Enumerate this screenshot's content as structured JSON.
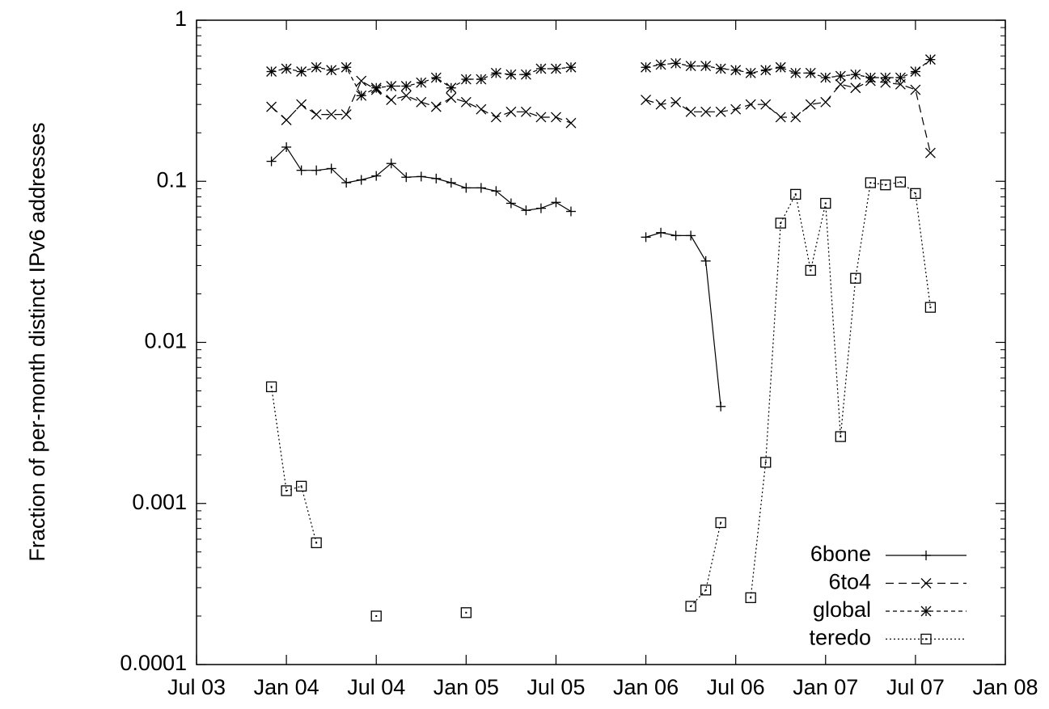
{
  "chart_data": {
    "type": "line",
    "ylabel": "Fraction of per-month distinct IPv6 addresses",
    "log_y": true,
    "x": [
      "2003-12",
      "2004-01",
      "2004-02",
      "2004-03",
      "2004-04",
      "2004-05",
      "2004-06",
      "2004-07",
      "2004-08",
      "2004-09",
      "2004-10",
      "2004-11",
      "2004-12",
      "2005-01",
      "2005-02",
      "2005-03",
      "2005-04",
      "2005-05",
      "2005-06",
      "2005-07",
      "2005-08",
      "2005-09",
      "2005-10",
      "2005-11",
      "2005-12",
      "2006-01",
      "2006-02",
      "2006-03",
      "2006-04",
      "2006-05",
      "2006-06",
      "2006-07",
      "2006-08",
      "2006-09",
      "2006-10",
      "2006-11",
      "2006-12",
      "2007-01",
      "2007-02",
      "2007-03",
      "2007-04",
      "2007-05",
      "2007-06",
      "2007-07",
      "2007-08"
    ],
    "xlim": [
      "2003-07",
      "2008-01"
    ],
    "xticks": [
      {
        "value": "2003-07",
        "label": "Jul 03"
      },
      {
        "value": "2004-01",
        "label": "Jan 04"
      },
      {
        "value": "2004-07",
        "label": "Jul 04"
      },
      {
        "value": "2005-01",
        "label": "Jan 05"
      },
      {
        "value": "2005-07",
        "label": "Jul 05"
      },
      {
        "value": "2006-01",
        "label": "Jan 06"
      },
      {
        "value": "2006-07",
        "label": "Jul 06"
      },
      {
        "value": "2007-01",
        "label": "Jan 07"
      },
      {
        "value": "2007-07",
        "label": "Jul 07"
      },
      {
        "value": "2008-01",
        "label": "Jan 08"
      }
    ],
    "ylim": [
      0.0001,
      1
    ],
    "yticks": [
      0.0001,
      0.001,
      0.01,
      0.1,
      1
    ],
    "legend": "bottom-right",
    "series": [
      {
        "name": "6bone",
        "color": "#000000",
        "marker": "plus",
        "dash": "none",
        "values": [
          0.133,
          0.163,
          0.117,
          0.117,
          0.12,
          0.098,
          0.102,
          0.108,
          0.129,
          0.106,
          0.107,
          0.104,
          0.098,
          0.091,
          0.091,
          0.087,
          0.073,
          0.066,
          0.068,
          0.074,
          0.065,
          null,
          null,
          null,
          null,
          0.045,
          0.048,
          0.046,
          0.046,
          0.032,
          0.004,
          null,
          null,
          null,
          null,
          null,
          null,
          null,
          null,
          null,
          null,
          null,
          null,
          null,
          null
        ]
      },
      {
        "name": "6to4",
        "color": "#000000",
        "marker": "cross",
        "dash": "10,6",
        "values": [
          0.29,
          0.24,
          0.3,
          0.26,
          0.26,
          0.26,
          0.42,
          0.37,
          0.32,
          0.34,
          0.31,
          0.29,
          0.33,
          0.31,
          0.28,
          0.25,
          0.27,
          0.27,
          0.25,
          0.25,
          0.23,
          null,
          null,
          null,
          null,
          0.32,
          0.3,
          0.31,
          0.27,
          0.27,
          0.27,
          0.28,
          0.3,
          0.3,
          0.25,
          0.25,
          0.3,
          0.31,
          0.4,
          0.38,
          0.42,
          0.41,
          0.4,
          0.37,
          0.15
        ]
      },
      {
        "name": "global",
        "color": "#000000",
        "marker": "star",
        "dash": "5,4",
        "values": [
          0.48,
          0.5,
          0.48,
          0.51,
          0.49,
          0.51,
          0.34,
          0.38,
          0.39,
          0.39,
          0.41,
          0.44,
          0.38,
          0.43,
          0.43,
          0.47,
          0.46,
          0.46,
          0.5,
          0.5,
          0.51,
          null,
          null,
          null,
          null,
          0.51,
          0.53,
          0.54,
          0.52,
          0.52,
          0.5,
          0.49,
          0.47,
          0.49,
          0.51,
          0.47,
          0.47,
          0.44,
          0.45,
          0.46,
          0.44,
          0.44,
          0.44,
          0.48,
          0.57
        ]
      },
      {
        "name": "teredo",
        "color": "#000000",
        "marker": "square",
        "dash": "2,3",
        "values": [
          0.0053,
          0.0012,
          0.00128,
          0.00057,
          null,
          null,
          null,
          0.0002,
          null,
          null,
          null,
          null,
          null,
          0.00021,
          null,
          null,
          null,
          null,
          null,
          null,
          null,
          null,
          null,
          null,
          null,
          null,
          null,
          null,
          0.00023,
          0.00029,
          0.00076,
          null,
          0.00026,
          0.0018,
          0.055,
          0.083,
          0.028,
          0.073,
          0.0026,
          0.025,
          0.098,
          0.095,
          0.099,
          0.084,
          0.0165
        ]
      }
    ]
  }
}
